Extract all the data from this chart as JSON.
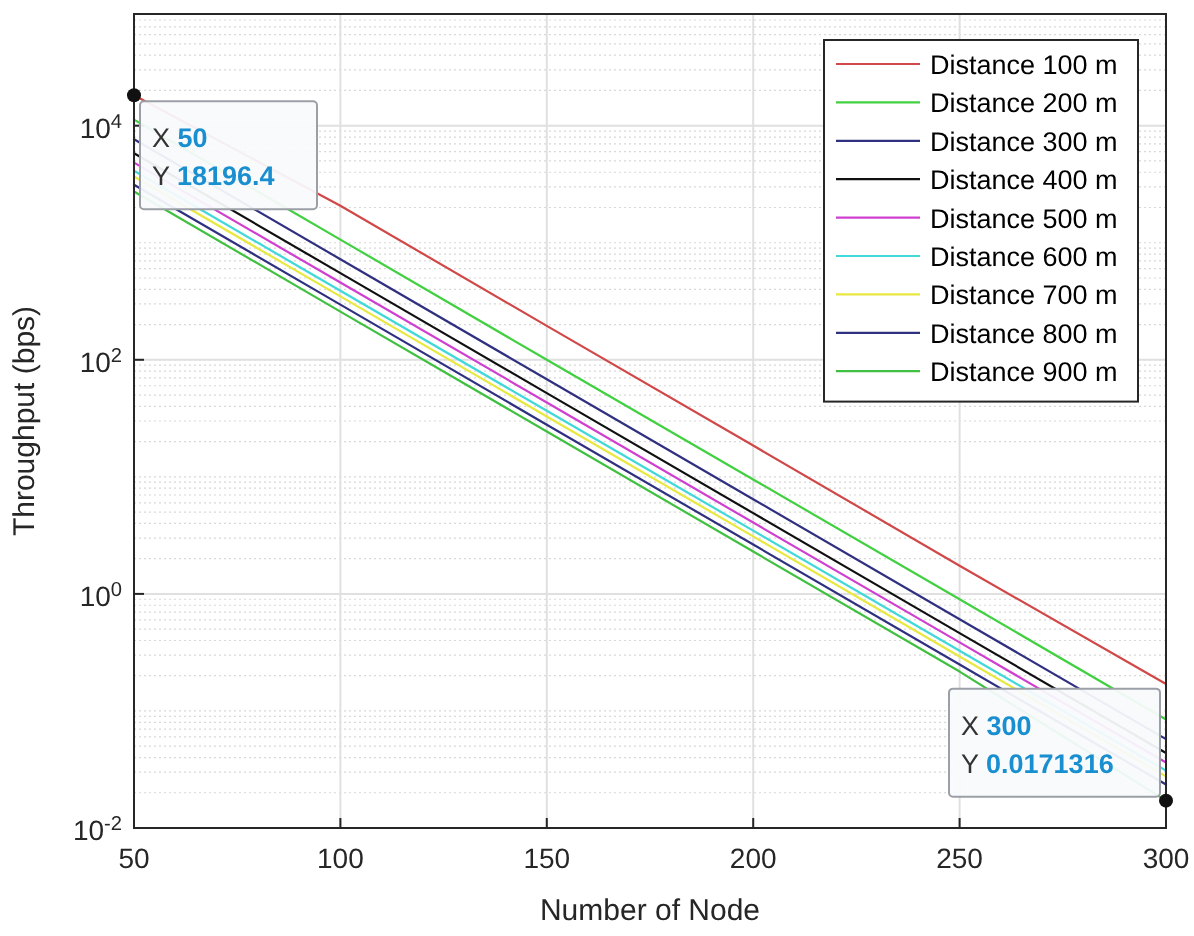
{
  "chart_data": {
    "type": "line",
    "xlabel": "Number of Node",
    "ylabel": "Throughput (bps)",
    "x": [
      50,
      100,
      150,
      200,
      250,
      300
    ],
    "series": [
      {
        "name": "Distance 100 m",
        "color": "#d04848",
        "values": [
          18196.4,
          2070,
          195,
          18.5,
          1.74,
          0.17
        ]
      },
      {
        "name": "Distance 200 m",
        "color": "#40d040",
        "values": [
          11270,
          1064,
          100,
          9.5,
          0.9,
          0.0845
        ]
      },
      {
        "name": "Distance 300 m",
        "color": "#303080",
        "values": [
          7650,
          723,
          68.2,
          6.44,
          0.608,
          0.0574
        ]
      },
      {
        "name": "Distance 400 m",
        "color": "#101010",
        "values": [
          5820,
          550,
          51.9,
          4.9,
          0.462,
          0.0437
        ]
      },
      {
        "name": "Distance 500 m",
        "color": "#d040d0",
        "values": [
          4840,
          457,
          43.2,
          4.07,
          0.385,
          0.0363
        ]
      },
      {
        "name": "Distance 600 m",
        "color": "#40d8d8",
        "values": [
          4120,
          389,
          36.7,
          3.47,
          0.327,
          0.0309
        ]
      },
      {
        "name": "Distance 700 m",
        "color": "#e8e840",
        "values": [
          3680,
          348,
          32.8,
          3.1,
          0.292,
          0.0276
        ]
      },
      {
        "name": "Distance 800 m",
        "color": "#303080",
        "values": [
          3130,
          296,
          27.9,
          2.64,
          0.249,
          0.0235
        ]
      },
      {
        "name": "Distance 900 m",
        "color": "#40c040",
        "values": [
          2740,
          258,
          24.4,
          2.3,
          0.217,
          0.0171316
        ]
      }
    ],
    "xlim": [
      50,
      300
    ],
    "xticks": [
      50,
      100,
      150,
      200,
      250,
      300
    ],
    "ylim": [
      0.01,
      90000
    ],
    "yticks": [
      {
        "value": 0.01,
        "label": "10$^{-2}$"
      },
      {
        "value": 1,
        "label": "10$^{0}$"
      },
      {
        "value": 100,
        "label": "10$^{2}$"
      },
      {
        "value": 10000,
        "label": "10$^{4}$"
      }
    ],
    "log": "y",
    "grid": true,
    "legend": "top right",
    "line_style": "solid",
    "marker": "none",
    "annotations": [
      {
        "text": "X 50\nY 18196.4",
        "x": 50,
        "y": 18196.4
      },
      {
        "text": "X 300\nY 0.0171316",
        "x": 300,
        "y": 0.0171316
      }
    ]
  }
}
